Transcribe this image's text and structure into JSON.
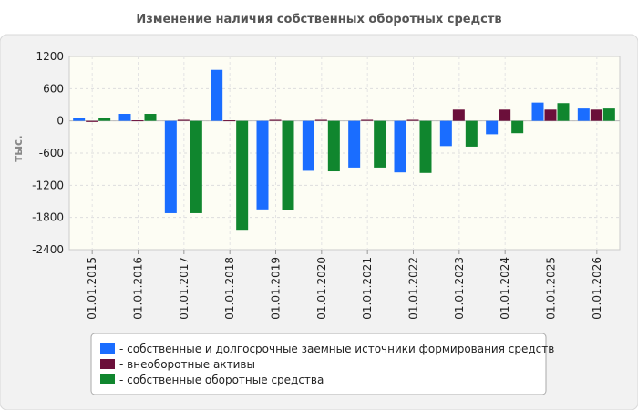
{
  "chart_data": {
    "type": "bar",
    "title": "Изменение наличия собственных оборотных средств",
    "xlabel": "",
    "ylabel": "тыс.",
    "ylim": [
      -2400,
      1200
    ],
    "yticks": [
      1200,
      600,
      0,
      -600,
      -1200,
      -1800,
      -2400
    ],
    "categories": [
      "01.01.2015",
      "01.01.2016",
      "01.01.2017",
      "01.01.2018",
      "01.01.2019",
      "01.01.2020",
      "01.01.2021",
      "01.01.2022",
      "01.01.2023",
      "01.01.2024",
      "01.01.2025",
      "01.01.2026"
    ],
    "series": [
      {
        "name": "- собственные и долгосрочные заемные источники формирования средств",
        "color": "#1a6dff",
        "values": [
          60,
          130,
          -1720,
          950,
          -1650,
          -930,
          -870,
          -960,
          -470,
          -250,
          340,
          230
        ]
      },
      {
        "name": "- внеоборотные активы",
        "color": "#6b0f3a",
        "values": [
          -20,
          10,
          20,
          10,
          20,
          20,
          20,
          20,
          210,
          210,
          210,
          210
        ]
      },
      {
        "name": "- собственные оборотные средства",
        "color": "#10862e",
        "values": [
          60,
          130,
          -1720,
          -2030,
          -1660,
          -940,
          -870,
          -970,
          -480,
          -230,
          330,
          230
        ]
      }
    ],
    "grid": true,
    "legend_position": "bottom"
  }
}
